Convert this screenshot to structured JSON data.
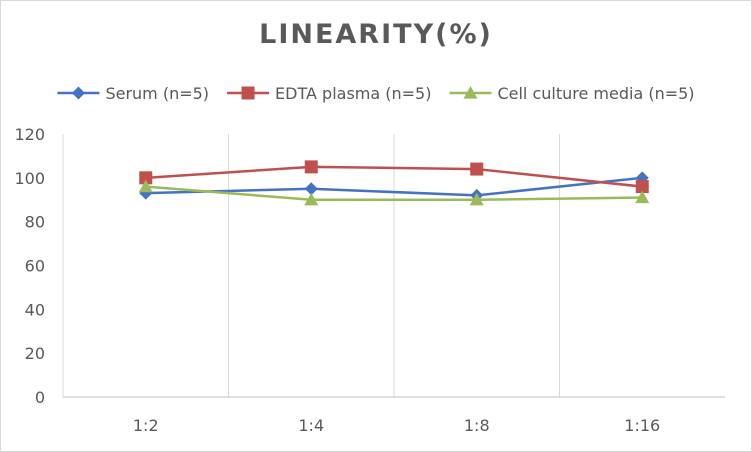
{
  "chart_data": {
    "type": "line",
    "title": "LINEARITY(%)",
    "xlabel": "",
    "ylabel": "",
    "categories": [
      "1:2",
      "1:4",
      "1:8",
      "1:16"
    ],
    "ylim": [
      0,
      120
    ],
    "yticks": [
      0,
      20,
      40,
      60,
      80,
      100,
      120
    ],
    "grid": "vertical",
    "legend_position": "top",
    "series": [
      {
        "name": "Serum (n=5)",
        "values": [
          93,
          95,
          92,
          100
        ],
        "color": "#4472c4",
        "marker": "diamond"
      },
      {
        "name": "EDTA plasma (n=5)",
        "values": [
          100,
          105,
          104,
          96
        ],
        "color": "#c0504d",
        "marker": "square"
      },
      {
        "name": "Cell culture media (n=5)",
        "values": [
          96,
          90,
          90,
          91
        ],
        "color": "#9bbb59",
        "marker": "triangle"
      }
    ]
  }
}
